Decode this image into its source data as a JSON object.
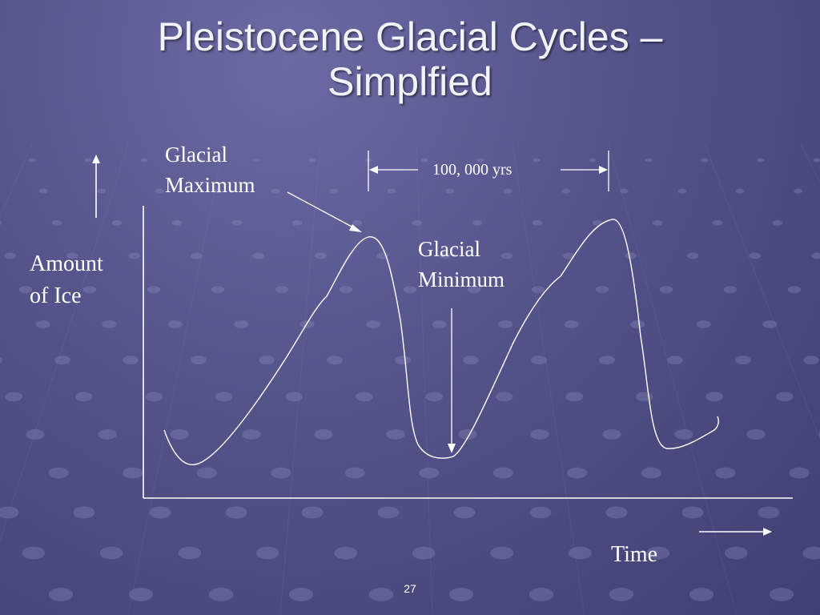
{
  "slide": {
    "title_line1": "Pleistocene Glacial Cycles –",
    "title_line2": "Simplfied",
    "page_number": "27"
  },
  "diagram": {
    "y_label_line1": "Amount",
    "y_label_line2": "of Ice",
    "x_label": "Time",
    "max_label_line1": "Glacial",
    "max_label_line2": "Maximum",
    "min_label_line1": "Glacial",
    "min_label_line2": "Minimum",
    "period_label": "100, 000 yrs"
  },
  "colors": {
    "background": "#53538a",
    "line": "#ffffff",
    "title": "#f2f2fa"
  }
}
